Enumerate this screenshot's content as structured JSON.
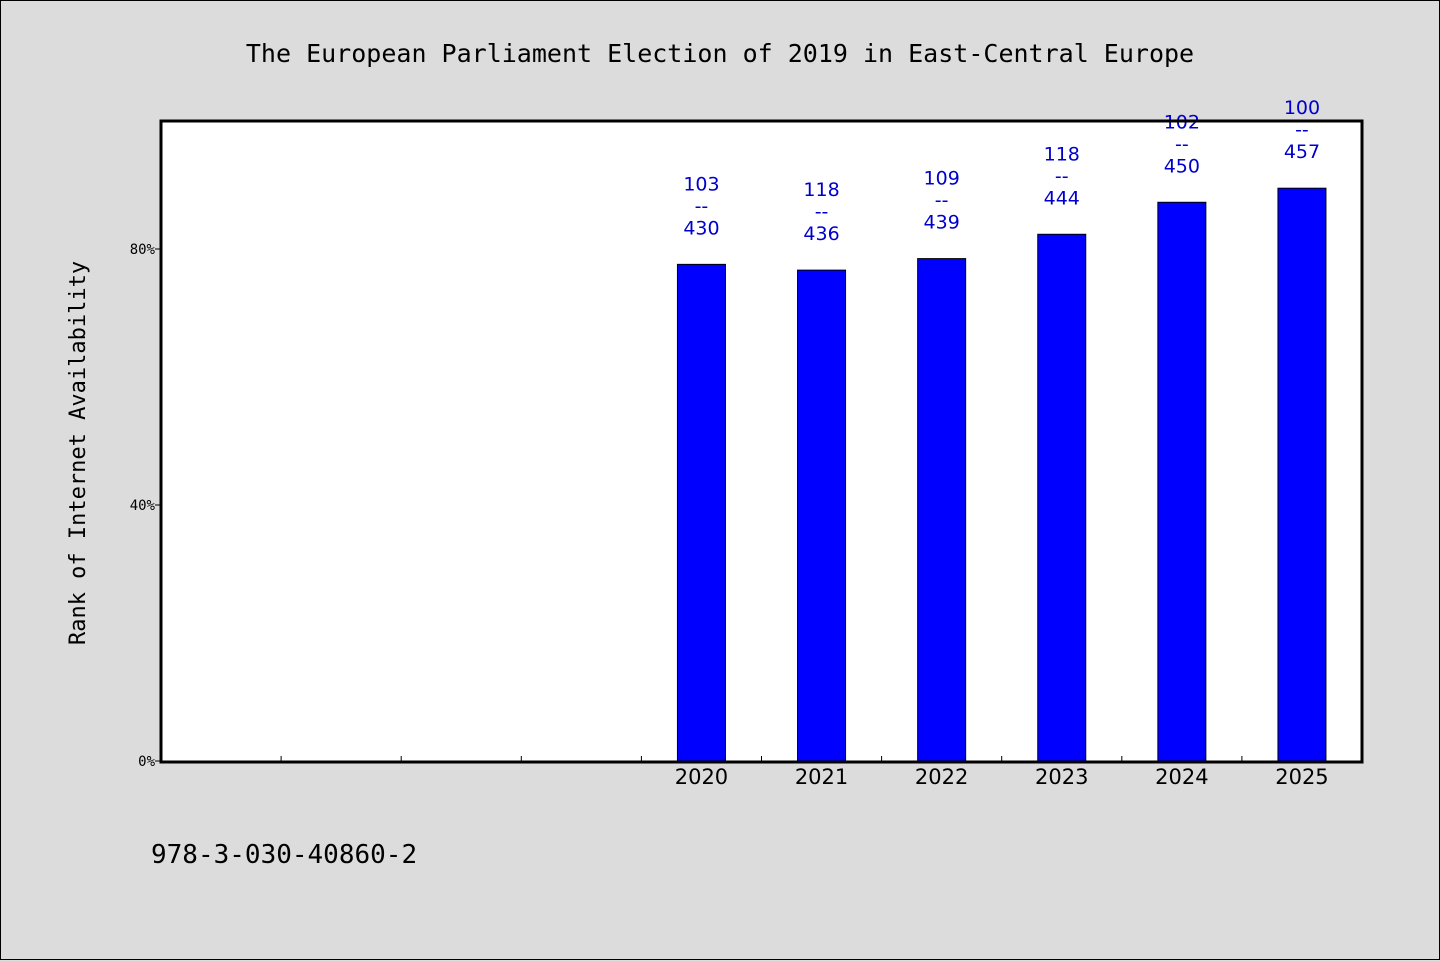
{
  "chart_data": {
    "type": "bar",
    "title": "The European Parliament Election of 2019 in East-Central Europe",
    "xlabel": "",
    "ylabel": "Rank of Internet Availability",
    "categories": [
      "",
      "",
      "",
      "",
      "2020",
      "2021",
      "2022",
      "2023",
      "2024",
      "2025"
    ],
    "values": [
      null,
      null,
      null,
      null,
      77.6,
      76.7,
      78.5,
      82.3,
      87.3,
      89.5
    ],
    "bar_labels": [
      null,
      null,
      null,
      null,
      {
        "top": "103",
        "mid": "--",
        "bottom": "430"
      },
      {
        "top": "118",
        "mid": "--",
        "bottom": "436"
      },
      {
        "top": "109",
        "mid": "--",
        "bottom": "439"
      },
      {
        "top": "118",
        "mid": "--",
        "bottom": "444"
      },
      {
        "top": "102",
        "mid": "--",
        "bottom": "450"
      },
      {
        "top": "100",
        "mid": "--",
        "bottom": "457"
      }
    ],
    "ylim": [
      0,
      100
    ],
    "yticks": [
      {
        "value": 0,
        "label": "0%"
      },
      {
        "value": 40,
        "label": "40%"
      },
      {
        "value": 80,
        "label": "80%"
      }
    ],
    "bar_color": "#0000ff",
    "label_color": "#0000cc",
    "grid": false,
    "legend": "none"
  },
  "footer": {
    "isbn": "978-3-030-40860-2"
  }
}
